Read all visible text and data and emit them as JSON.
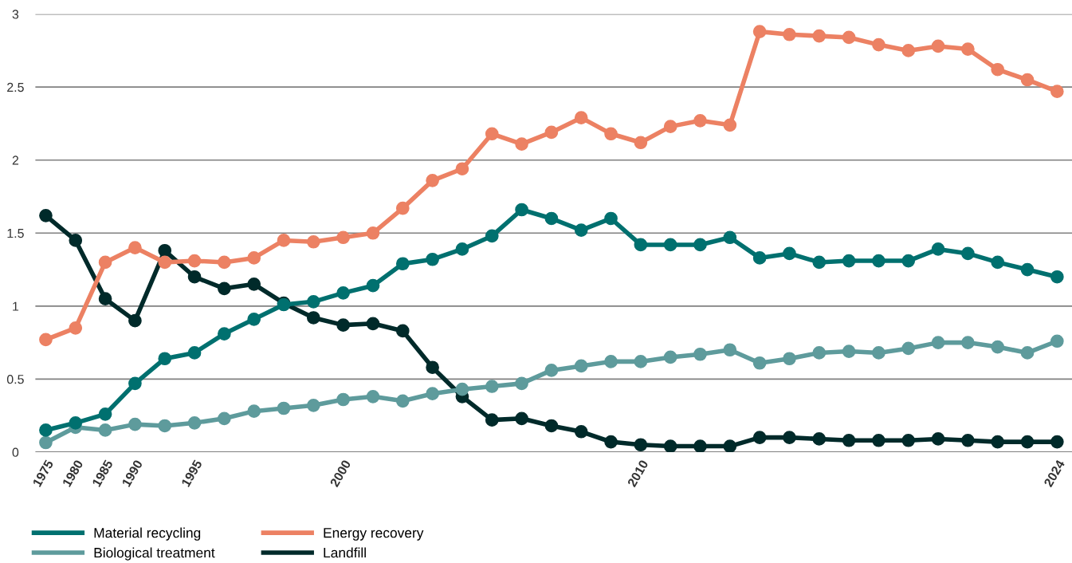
{
  "chart_data": {
    "type": "line",
    "categories": [
      "1975",
      "1980",
      "1985",
      "1990",
      null,
      "1995",
      null,
      null,
      null,
      null,
      "2000",
      null,
      null,
      null,
      null,
      null,
      null,
      null,
      null,
      null,
      "2010",
      null,
      null,
      null,
      null,
      null,
      null,
      null,
      null,
      null,
      null,
      null,
      null,
      null,
      "2024"
    ],
    "series": [
      {
        "name": "Material recycling",
        "color": "#00706f",
        "values": [
          0.15,
          0.2,
          0.26,
          0.47,
          0.64,
          0.68,
          0.81,
          0.91,
          1.01,
          1.03,
          1.09,
          1.14,
          1.29,
          1.32,
          1.39,
          1.48,
          1.66,
          1.6,
          1.52,
          1.6,
          1.42,
          1.42,
          1.42,
          1.47,
          1.33,
          1.36,
          1.3,
          1.31,
          1.31,
          1.31,
          1.39,
          1.36,
          1.3,
          1.25,
          1.2
        ]
      },
      {
        "name": "Energy recovery",
        "color": "#ec8163",
        "values": [
          0.77,
          0.85,
          1.3,
          1.4,
          1.3,
          1.31,
          1.3,
          1.33,
          1.45,
          1.44,
          1.47,
          1.5,
          1.67,
          1.86,
          1.94,
          2.18,
          2.11,
          2.19,
          2.29,
          2.18,
          2.12,
          2.23,
          2.27,
          2.24,
          2.88,
          2.86,
          2.85,
          2.84,
          2.79,
          2.75,
          2.78,
          2.76,
          2.62,
          2.55,
          2.47
        ]
      },
      {
        "name": "Biological treatment",
        "color": "#5e9b9c",
        "values": [
          0.065,
          0.17,
          0.15,
          0.19,
          0.18,
          0.2,
          0.23,
          0.28,
          0.3,
          0.32,
          0.36,
          0.38,
          0.35,
          0.4,
          0.43,
          0.45,
          0.47,
          0.56,
          0.59,
          0.62,
          0.62,
          0.65,
          0.67,
          0.7,
          0.61,
          0.64,
          0.68,
          0.69,
          0.68,
          0.71,
          0.75,
          0.75,
          0.72,
          0.68,
          0.76
        ]
      },
      {
        "name": "Landfill",
        "color": "#002a2a",
        "values": [
          1.62,
          1.45,
          1.05,
          0.9,
          1.38,
          1.2,
          1.12,
          1.15,
          1.02,
          0.92,
          0.87,
          0.88,
          0.83,
          0.58,
          0.38,
          0.22,
          0.23,
          0.18,
          0.14,
          0.07,
          0.05,
          0.04,
          0.04,
          0.04,
          0.1,
          0.1,
          0.09,
          0.08,
          0.08,
          0.08,
          0.09,
          0.08,
          0.07,
          0.07,
          0.07
        ]
      }
    ],
    "ylim": [
      0,
      3
    ],
    "yticks": [
      0,
      0.5,
      1,
      1.5,
      2,
      2.5,
      3
    ],
    "grid": "y",
    "legend": "bottom left",
    "marker": "circle",
    "line_style": "solid"
  }
}
